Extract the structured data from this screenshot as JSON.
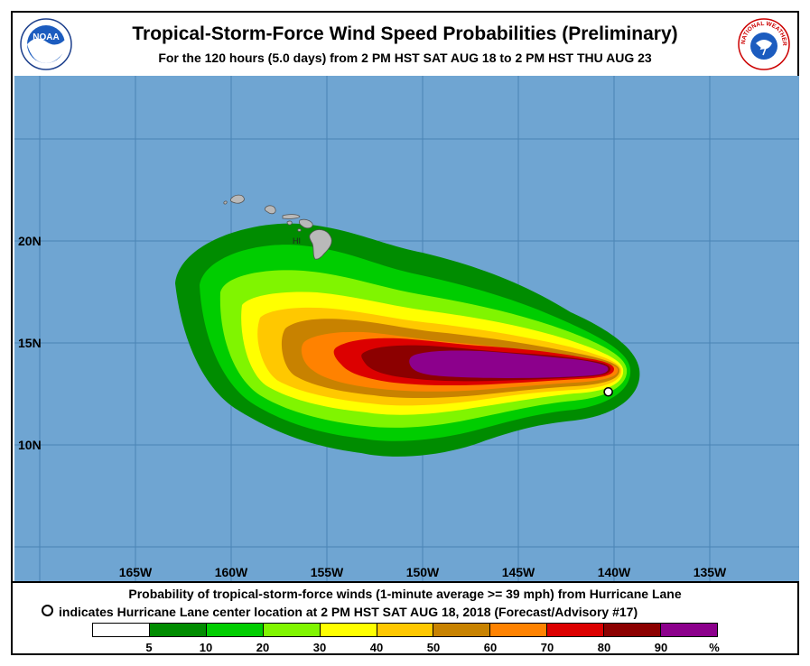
{
  "header": {
    "title": "Tropical-Storm-Force Wind Speed Probabilities (Preliminary)",
    "subtitle": "For the 120 hours (5.0 days) from 2 PM HST SAT AUG 18 to 2 PM HST THU AUG 23",
    "noaa_logo_text": "NOAA",
    "nws_logo_text": "NATIONAL WEATHER SERVICE"
  },
  "map": {
    "ocean_color": "#6fa5d2",
    "grid_color": "#4a83b4",
    "land_label": "HI",
    "lat_labels": [
      {
        "text": "20N",
        "lat": 20
      },
      {
        "text": "15N",
        "lat": 15
      },
      {
        "text": "10N",
        "lat": 10
      }
    ],
    "lon_labels": [
      {
        "text": "165W",
        "lon": -165
      },
      {
        "text": "160W",
        "lon": -160
      },
      {
        "text": "155W",
        "lon": -155
      },
      {
        "text": "150W",
        "lon": -150
      },
      {
        "text": "145W",
        "lon": -145
      },
      {
        "text": "140W",
        "lon": -140
      },
      {
        "text": "135W",
        "lon": -135
      }
    ],
    "storm_center": {
      "lon": -140.3,
      "lat": 12.6
    }
  },
  "footer": {
    "line1": "Probability of tropical-storm-force winds (1-minute average >= 39 mph) from Hurricane Lane",
    "line2": "indicates Hurricane Lane center location at 2 PM HST SAT AUG 18, 2018 (Forecast/Advisory #17)"
  },
  "legend": {
    "colors": [
      "#ffffff",
      "#008c00",
      "#00cd00",
      "#80f500",
      "#ffff00",
      "#ffc800",
      "#c88200",
      "#ff8200",
      "#dc0000",
      "#8c0000",
      "#8c008c"
    ],
    "labels": [
      "5",
      "10",
      "20",
      "30",
      "40",
      "50",
      "60",
      "70",
      "80",
      "90",
      "%"
    ]
  }
}
